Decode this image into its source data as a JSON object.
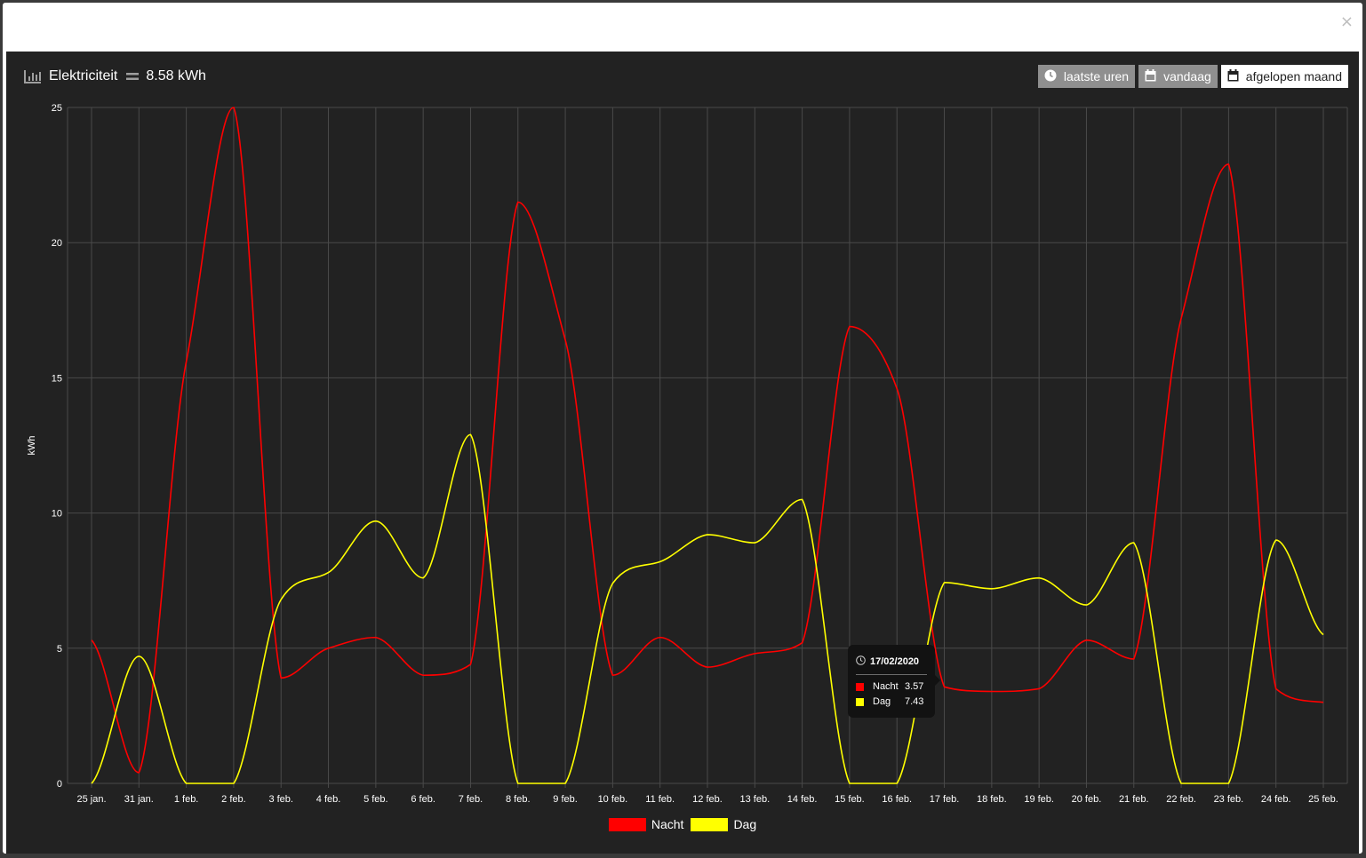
{
  "header": {
    "title": "Elektriciteit",
    "total": "8.58 kWh"
  },
  "range_buttons": [
    {
      "label": "laatste uren",
      "icon": "clock-icon",
      "active": false
    },
    {
      "label": "vandaag",
      "icon": "calendar-icon",
      "active": false
    },
    {
      "label": "afgelopen maand",
      "icon": "calendar-icon",
      "active": true
    }
  ],
  "tooltip": {
    "date": "17/02/2020",
    "rows": [
      {
        "name": "Nacht",
        "value": "3.57",
        "color": "#ff0000"
      },
      {
        "name": "Dag",
        "value": "7.43",
        "color": "#ffff00"
      }
    ]
  },
  "chart_data": {
    "type": "line",
    "ylabel": "kWh",
    "ylim": [
      0,
      25
    ],
    "yticks": [
      0,
      5,
      10,
      15,
      20,
      25
    ],
    "grid": true,
    "legend_position": "bottom-center",
    "categories": [
      "25 jan.",
      "31 jan.",
      "1 feb.",
      "2 feb.",
      "3 feb.",
      "4 feb.",
      "5 feb.",
      "6 feb.",
      "7 feb.",
      "8 feb.",
      "9 feb.",
      "10 feb.",
      "11 feb.",
      "12 feb.",
      "13 feb.",
      "14 feb.",
      "15 feb.",
      "16 feb.",
      "17 feb.",
      "18 feb.",
      "19 feb.",
      "20 feb.",
      "21 feb.",
      "22 feb.",
      "23 feb.",
      "24 feb.",
      "25 feb."
    ],
    "series": [
      {
        "name": "Nacht",
        "color": "#ff0000",
        "values": [
          5.3,
          0.4,
          15.6,
          25.0,
          3.9,
          5.0,
          5.4,
          4.0,
          4.4,
          21.5,
          16.4,
          4.0,
          5.4,
          4.3,
          4.8,
          5.2,
          16.9,
          14.6,
          3.57,
          3.4,
          3.5,
          5.3,
          4.6,
          17.2,
          22.9,
          3.5,
          3.0
        ]
      },
      {
        "name": "Dag",
        "color": "#ffff00",
        "values": [
          0.0,
          4.7,
          0.0,
          0.0,
          6.8,
          7.8,
          9.7,
          7.6,
          12.9,
          0.0,
          0.0,
          7.4,
          8.2,
          9.2,
          8.9,
          10.5,
          0.0,
          0.0,
          7.43,
          7.2,
          7.6,
          6.6,
          8.9,
          0.0,
          0.0,
          9.0,
          5.5
        ]
      }
    ]
  }
}
